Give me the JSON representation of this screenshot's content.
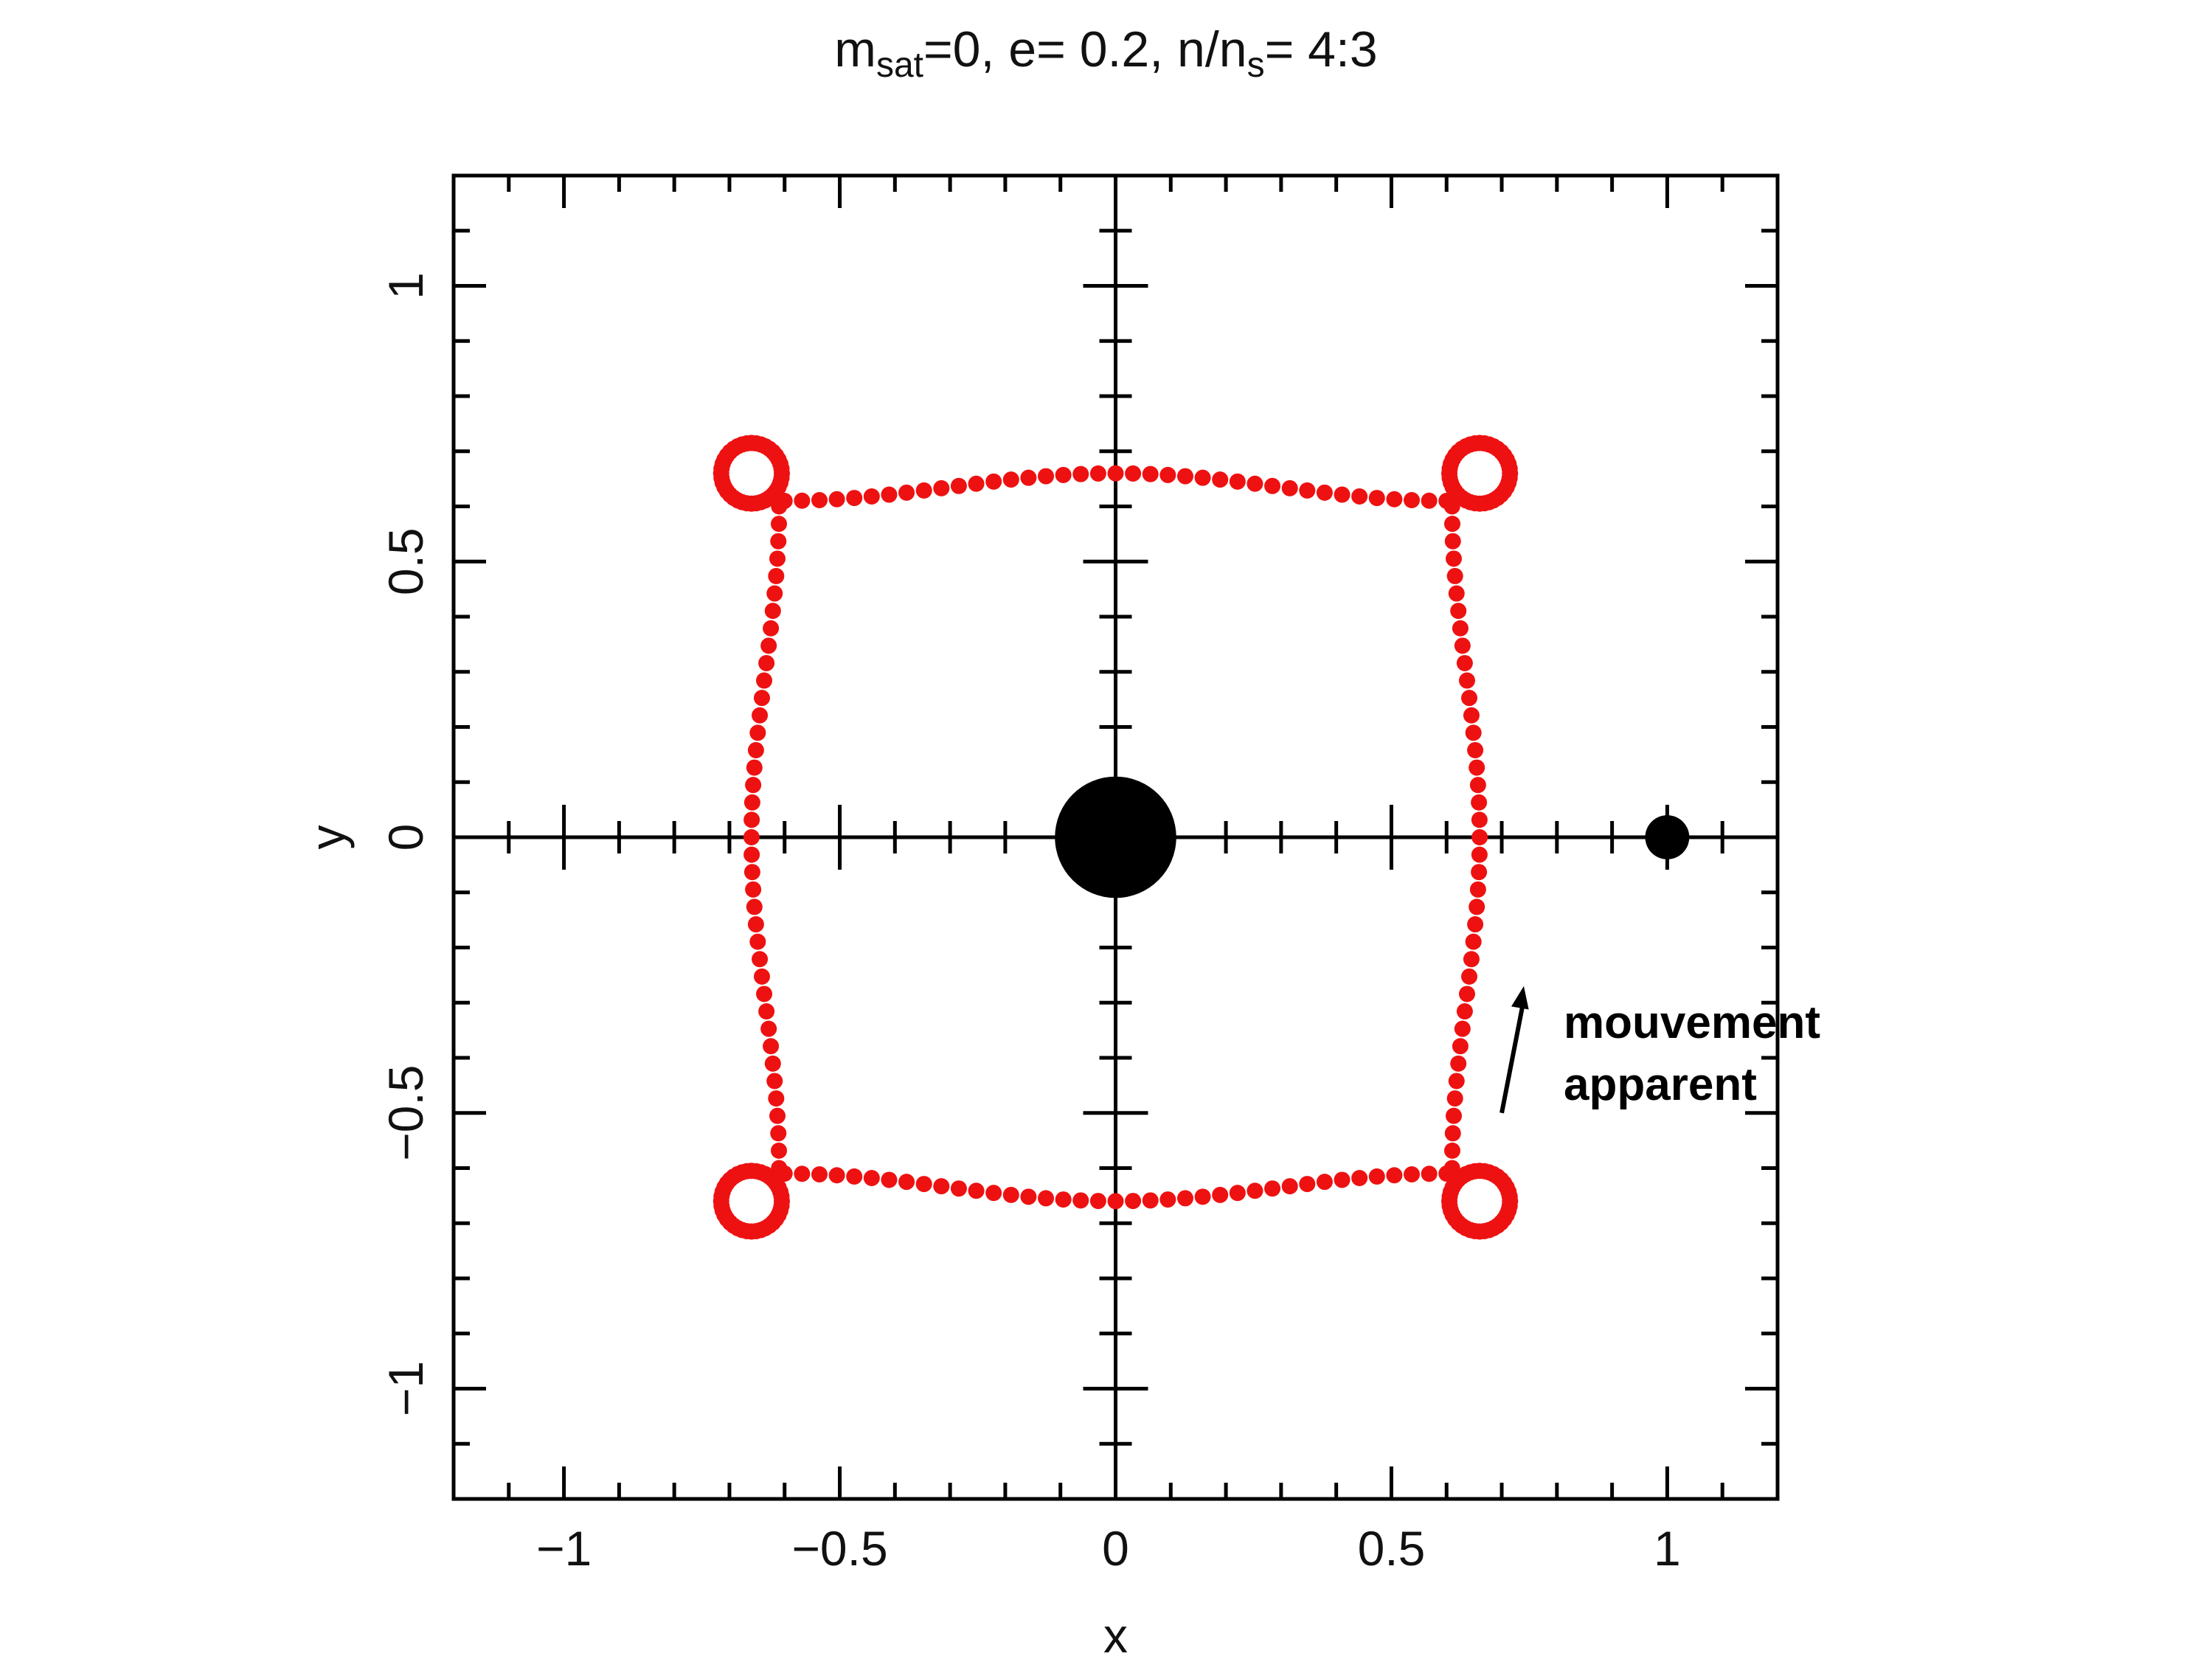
{
  "chart_data": {
    "type": "scatter",
    "title": {
      "m": "m",
      "m_sub": "sat",
      "after_m": "=0, e= 0.2, n/n",
      "n_sub": "s",
      "tail": "= 4:3"
    },
    "xlabel": "x",
    "ylabel": "y",
    "xlim": [
      -1.2,
      1.2
    ],
    "ylim": [
      -1.2,
      1.2
    ],
    "xticks": [
      -1,
      -0.5,
      0,
      0.5,
      1
    ],
    "xtick_labels": [
      "−1",
      "−0.5",
      "0",
      "0.5",
      "1"
    ],
    "yticks": [
      -1,
      -0.5,
      0,
      0.5,
      1
    ],
    "ytick_labels": [
      "−1",
      "−0.5",
      "0",
      "0.5",
      "1"
    ],
    "minor_tick_step": 0.1,
    "grid": false,
    "series": [
      {
        "marker": "dot",
        "color": "#ee1111",
        "curve": "apparent orbit (square with looped corners)",
        "side_extent": 0.66,
        "corner_loop_center": 0.66,
        "corner_loop_radius": 0.055,
        "points_per_side": 38
      }
    ],
    "bodies": [
      {
        "x": 0,
        "y": 0,
        "radius": 0.11,
        "color": "#000000"
      },
      {
        "x": 1,
        "y": 0,
        "radius": 0.04,
        "color": "#000000"
      }
    ],
    "annotation": {
      "lines": [
        "mouvement",
        "apparent"
      ],
      "arrow_from": [
        0.7,
        -0.5
      ],
      "arrow_to": [
        0.74,
        -0.27
      ]
    }
  }
}
